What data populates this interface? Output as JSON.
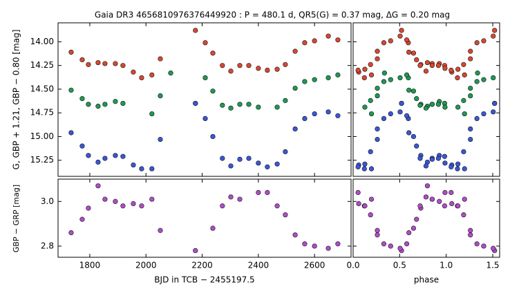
{
  "chart_data": [
    {
      "type": "scatter",
      "title": "Gaia  DR3  4656810976376449920 :  P = 480.1 d,   QR5(G) = 0.37 mag,   ΔG = 0.20 mag",
      "ylabel": "G,  GBP + 1.21,  GBP − 0.80  [mag]",
      "x": [
        1733.6,
        1773,
        1795,
        1829.5,
        1854,
        1891,
        1918,
        1955,
        1984.5,
        2021,
        2051,
        2088,
        2176,
        2211,
        2238,
        2272,
        2302,
        2334,
        2366,
        2400,
        2432,
        2467,
        2496,
        2531,
        2565,
        2600,
        2649,
        2683
      ],
      "series": [
        {
          "color": "#d9472f",
          "values": [
            14.11,
            14.19,
            14.24,
            14.22,
            14.23,
            14.23,
            14.25,
            14.32,
            14.38,
            14.35,
            14.18,
            null,
            13.88,
            14.01,
            14.12,
            14.25,
            14.31,
            14.25,
            14.25,
            14.28,
            14.3,
            14.29,
            14.24,
            14.1,
            14.01,
            13.99,
            13.94,
            13.98
          ]
        },
        {
          "color": "#1e9a52",
          "values": [
            14.51,
            14.6,
            14.66,
            14.68,
            14.66,
            14.63,
            14.65,
            null,
            null,
            14.76,
            14.57,
            14.33,
            14.65,
            14.38,
            14.52,
            14.67,
            14.7,
            14.66,
            14.66,
            14.69,
            null,
            14.69,
            14.62,
            14.49,
            14.42,
            14.4,
            14.38,
            14.35
          ]
        },
        {
          "color": "#3a57d8",
          "values": [
            14.96,
            15.1,
            15.2,
            15.27,
            15.23,
            15.2,
            15.21,
            15.3,
            15.34,
            15.34,
            15.03,
            null,
            14.65,
            14.81,
            15.0,
            15.23,
            15.31,
            15.24,
            15.23,
            15.28,
            15.32,
            15.29,
            15.16,
            14.92,
            14.81,
            14.76,
            14.74,
            14.78
          ]
        }
      ],
      "xlim": [
        1687,
        2730
      ],
      "xticks": [
        1800,
        2000,
        2200,
        2400,
        2600
      ],
      "ylim": [
        15.42,
        13.8
      ],
      "yticks": [
        {
          "value": 14.0,
          "label": "14.00"
        },
        14.25,
        {
          "value": 14.5,
          "label": "14.50"
        },
        14.75,
        {
          "value": 15.0,
          "label": "15.00"
        },
        15.25
      ]
    },
    {
      "type": "scatter",
      "ylabel": "GBP − GRP  [mag]",
      "xlabel": "BJD in TCB − 2455197.5",
      "color": "#b04cc8",
      "values": [
        2.86,
        2.92,
        2.97,
        3.07,
        3.01,
        3.0,
        2.98,
        2.99,
        2.98,
        3.01,
        2.87,
        null,
        2.78,
        null,
        2.88,
        2.98,
        3.02,
        3.01,
        null,
        3.04,
        3.04,
        2.98,
        2.94,
        2.85,
        2.81,
        2.8,
        2.79,
        2.81
      ],
      "ylim": [
        2.75,
        3.1
      ],
      "yticks": [
        2.8,
        {
          "value": 3.0,
          "label": "3.0"
        }
      ]
    },
    {
      "type": "scatter",
      "xlabel": "phase",
      "x": [
        0.599,
        0.681,
        0.727,
        0.798,
        0.849,
        0.926,
        0.983,
        0.06,
        0.121,
        0.197,
        0.26,
        0.337,
        0.52,
        0.593,
        0.649,
        0.72,
        0.783,
        0.849,
        0.916,
        0.987,
        0.053,
        0.126,
        0.187,
        0.26,
        0.33,
        0.403,
        0.505,
        0.576
      ],
      "xlim": [
        0,
        1.574
      ],
      "xticks": [
        {
          "value": 0,
          "label": "0.0"
        },
        0.5,
        {
          "value": 1,
          "label": "1.0"
        },
        1.5
      ]
    }
  ]
}
